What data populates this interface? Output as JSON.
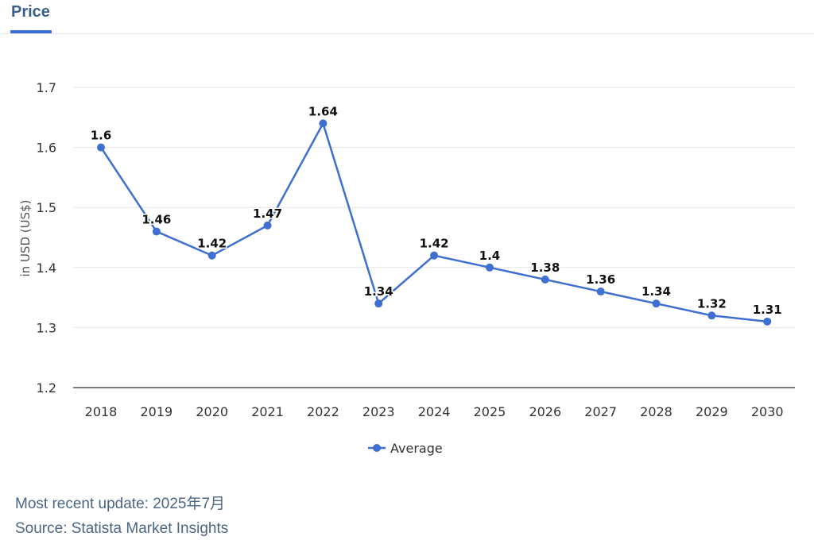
{
  "tab": {
    "label": "Price"
  },
  "chart_data": {
    "type": "line",
    "title": "",
    "xlabel": "",
    "ylabel": "in USD (US$)",
    "ylim": [
      1.2,
      1.7
    ],
    "yticks": [
      1.2,
      1.3,
      1.4,
      1.5,
      1.6,
      1.7
    ],
    "ytick_labels": [
      "1.2",
      "1.3",
      "1.4",
      "1.5",
      "1.6",
      "1.7"
    ],
    "grid": true,
    "legend_position": "bottom-center",
    "categories": [
      "2018",
      "2019",
      "2020",
      "2021",
      "2022",
      "2023",
      "2024",
      "2025",
      "2026",
      "2027",
      "2028",
      "2029",
      "2030"
    ],
    "series": [
      {
        "name": "Average",
        "color": "#3f6fd1",
        "values": [
          1.6,
          1.46,
          1.42,
          1.47,
          1.64,
          1.34,
          1.42,
          1.4,
          1.38,
          1.36,
          1.34,
          1.32,
          1.31
        ],
        "data_labels": [
          "1.6",
          "1.46",
          "1.42",
          "1.47",
          "1.64",
          "1.34",
          "1.42",
          "1.4",
          "1.38",
          "1.36",
          "1.34",
          "1.32",
          "1.31"
        ]
      }
    ]
  },
  "footer": {
    "update": "Most recent update: 2025年7月",
    "source": "Source: Statista Market Insights"
  }
}
